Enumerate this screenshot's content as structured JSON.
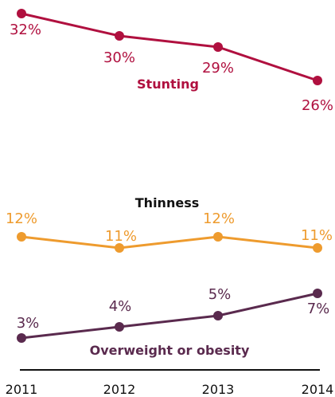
{
  "chart_data": {
    "type": "line",
    "x": [
      "2011",
      "2012",
      "2013",
      "2014"
    ],
    "series": [
      {
        "name": "Stunting",
        "color": "#B0103F",
        "values": [
          32,
          30,
          29,
          26
        ],
        "labels": [
          "32%",
          "30%",
          "29%",
          "26%"
        ]
      },
      {
        "name": "Thinness",
        "color": "#EE9B2E",
        "values": [
          12,
          11,
          12,
          11
        ],
        "labels": [
          "12%",
          "11%",
          "12%",
          "11%"
        ]
      },
      {
        "name": "Overweight or obesity",
        "color": "#5A2A4E",
        "values": [
          3,
          4,
          5,
          7
        ],
        "labels": [
          "3%",
          "4%",
          "5%",
          "7%"
        ]
      }
    ],
    "series_label_colors": [
      "#B0103F",
      "#111111",
      "#5A2A4E"
    ],
    "grid": false,
    "legend": "inline"
  }
}
